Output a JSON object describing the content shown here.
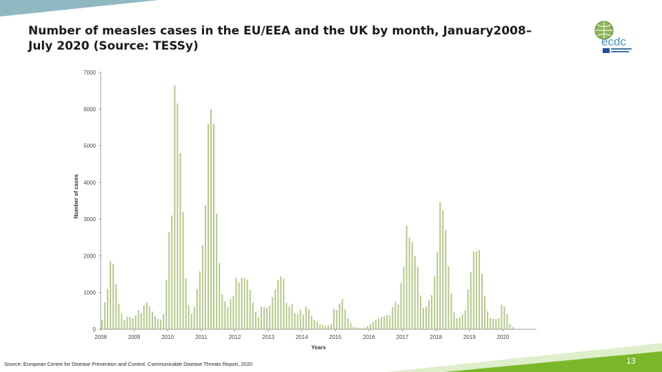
{
  "slide": {
    "title_line1": "Number of measles cases in the EU/EEA and the UK by month, January2008–",
    "title_line2": "July 2020 (Source: TESSy)",
    "source": "Source: European Centre for Disease Prevention and Control. Communicable Disease Threats Report, 2020",
    "page_number": "13",
    "logo_text": "ecdc",
    "accent_green": "#7ab829",
    "bar_color": "#b5c98a"
  },
  "chart_data": {
    "type": "bar",
    "title": "",
    "xlabel": "Years",
    "ylabel": "Number of cases",
    "ylim": [
      0,
      7000
    ],
    "yticks": [
      "0",
      "1000",
      "2000",
      "3000",
      "4000",
      "5000",
      "6000",
      "7000"
    ],
    "xticks": [
      "2008",
      "2009",
      "2010",
      "2011",
      "2012",
      "2013",
      "2014",
      "2015",
      "2016",
      "2017",
      "2018",
      "2019",
      "2020"
    ],
    "start": "2008-01",
    "end": "2020-07",
    "series": [
      {
        "values": [
          250,
          740,
          1100,
          1850,
          1780,
          1230,
          700,
          420,
          250,
          340,
          330,
          300,
          380,
          520,
          440,
          650,
          740,
          620,
          480,
          350,
          280,
          260,
          420,
          1350,
          2650,
          3100,
          6650,
          6150,
          4800,
          3200,
          1380,
          660,
          420,
          610,
          1100,
          1580,
          2300,
          3380,
          5600,
          6000,
          5600,
          3150,
          1800,
          960,
          760,
          600,
          820,
          910,
          1400,
          1280,
          1410,
          1390,
          1350,
          1080,
          720,
          480,
          330,
          620,
          600,
          580,
          640,
          880,
          1090,
          1340,
          1440,
          1380,
          720,
          620,
          690,
          440,
          420,
          530,
          400,
          610,
          540,
          360,
          250,
          200,
          140,
          110,
          90,
          100,
          140,
          560,
          520,
          700,
          820,
          550,
          300,
          170,
          60,
          50,
          40,
          40,
          50,
          90,
          140,
          190,
          260,
          290,
          340,
          360,
          390,
          380,
          600,
          750,
          680,
          1260,
          1700,
          2820,
          2500,
          2380,
          2000,
          1700,
          920,
          590,
          620,
          790,
          930,
          1440,
          2100,
          3470,
          3240,
          2700,
          1720,
          980,
          460,
          300,
          330,
          400,
          520,
          1090,
          1560,
          2120,
          2120,
          2160,
          1520,
          910,
          490,
          310,
          290,
          280,
          300,
          670,
          620,
          420,
          150,
          60
        ]
      }
    ]
  }
}
